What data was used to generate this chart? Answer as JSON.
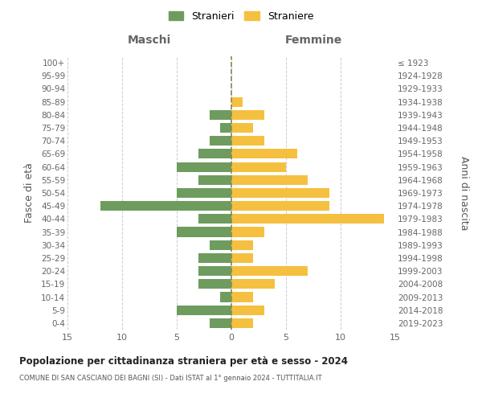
{
  "age_groups": [
    "0-4",
    "5-9",
    "10-14",
    "15-19",
    "20-24",
    "25-29",
    "30-34",
    "35-39",
    "40-44",
    "45-49",
    "50-54",
    "55-59",
    "60-64",
    "65-69",
    "70-74",
    "75-79",
    "80-84",
    "85-89",
    "90-94",
    "95-99",
    "100+"
  ],
  "birth_years": [
    "2019-2023",
    "2014-2018",
    "2009-2013",
    "2004-2008",
    "1999-2003",
    "1994-1998",
    "1989-1993",
    "1984-1988",
    "1979-1983",
    "1974-1978",
    "1969-1973",
    "1964-1968",
    "1959-1963",
    "1954-1958",
    "1949-1953",
    "1944-1948",
    "1939-1943",
    "1934-1938",
    "1929-1933",
    "1924-1928",
    "≤ 1923"
  ],
  "maschi": [
    2,
    5,
    1,
    3,
    3,
    3,
    2,
    5,
    3,
    12,
    5,
    3,
    5,
    3,
    2,
    1,
    2,
    0,
    0,
    0,
    0
  ],
  "femmine": [
    2,
    3,
    2,
    4,
    7,
    2,
    2,
    3,
    14,
    9,
    9,
    7,
    5,
    6,
    3,
    2,
    3,
    1,
    0,
    0,
    0
  ],
  "male_color": "#6e9c5e",
  "female_color": "#f5c040",
  "grid_color": "#cccccc",
  "center_line_color": "#888855",
  "title": "Popolazione per cittadinanza straniera per età e sesso - 2024",
  "subtitle": "COMUNE DI SAN CASCIANO DEI BAGNI (SI) - Dati ISTAT al 1° gennaio 2024 - TUTTITALIA.IT",
  "xlabel_left": "Maschi",
  "xlabel_right": "Femmine",
  "ylabel_left": "Fasce di età",
  "ylabel_right": "Anni di nascita",
  "legend_males": "Stranieri",
  "legend_females": "Straniere",
  "xlim": 15,
  "bg_color": "#ffffff"
}
